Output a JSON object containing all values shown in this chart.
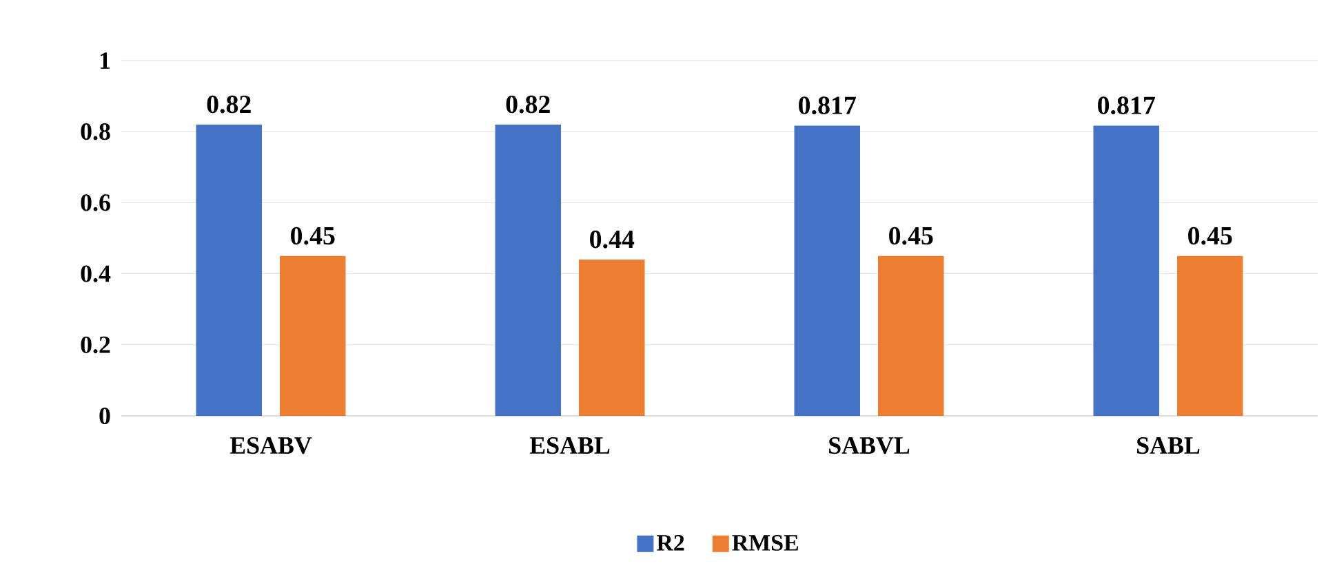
{
  "chart_data": {
    "type": "bar",
    "categories": [
      "ESABV",
      "ESABL",
      "SABVL",
      "SABL"
    ],
    "series": [
      {
        "name": "R2",
        "color": "#4472c4",
        "values": [
          0.82,
          0.82,
          0.817,
          0.817
        ]
      },
      {
        "name": "RMSE",
        "color": "#ed7d31",
        "values": [
          0.45,
          0.44,
          0.45,
          0.45
        ]
      }
    ],
    "ylim": [
      0,
      1
    ],
    "yticks": [
      0,
      0.2,
      0.4,
      0.6,
      0.8,
      1
    ],
    "grid": "y",
    "legend": "bottom",
    "data_labels": true
  }
}
